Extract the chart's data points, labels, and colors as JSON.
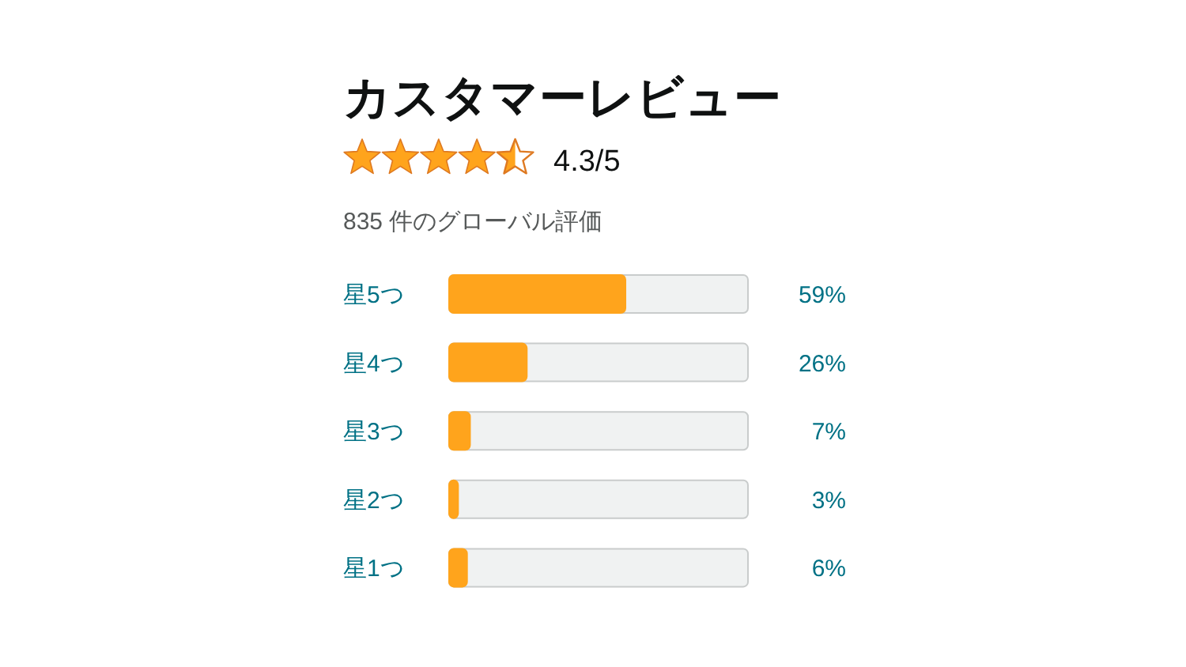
{
  "chart_data": {
    "type": "bar",
    "orientation": "horizontal",
    "title": "カスタマーレビュー",
    "subtitle": "835 件のグローバル評価",
    "annotations": [
      "4.3/5"
    ],
    "categories": [
      "星5つ",
      "星4つ",
      "星3つ",
      "星2つ",
      "星1つ"
    ],
    "values": [
      59,
      26,
      7,
      3,
      6
    ],
    "value_labels": [
      "59%",
      "26%",
      "7%",
      "3%",
      "6%"
    ],
    "color": "#ffa41c",
    "xlim": [
      0,
      100
    ],
    "tick_labels": "y"
  }
}
